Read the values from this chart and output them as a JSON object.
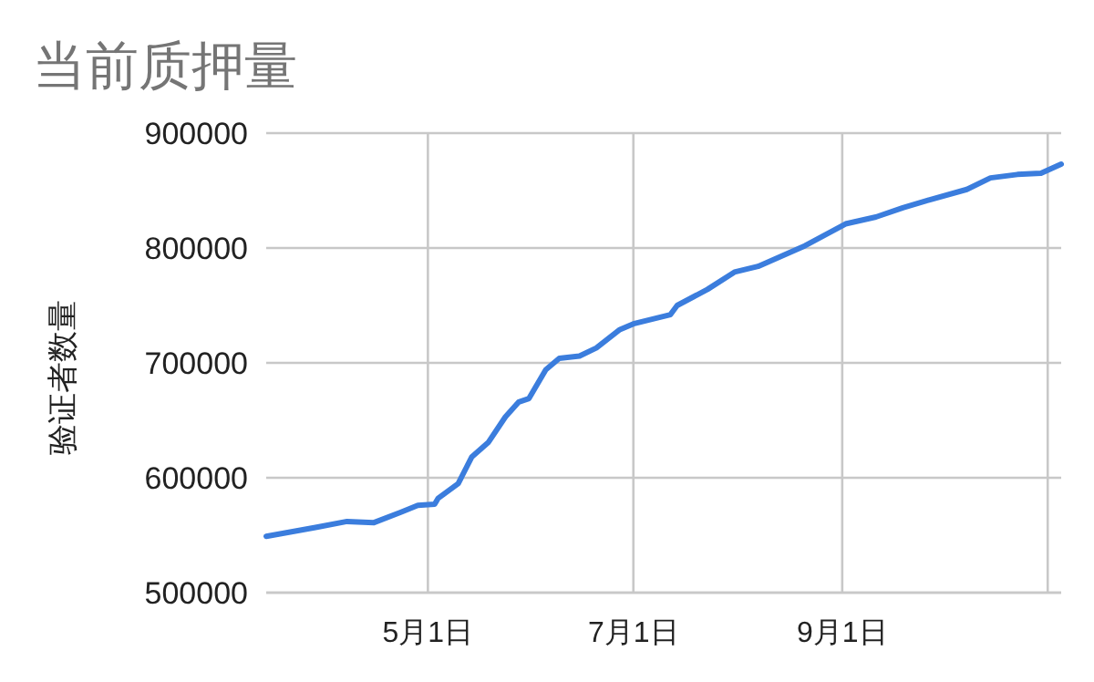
{
  "chart_data": {
    "type": "line",
    "title": "当前质押量",
    "ylabel": "验证者数量",
    "x": [
      "--03-14",
      "--03-29",
      "--04-07",
      "--04-15",
      "--04-23",
      "--04-28",
      "--05-03",
      "--05-04",
      "--05-10",
      "--05-14",
      "--05-19",
      "--05-24",
      "--05-28",
      "--05-31",
      "--06-05",
      "--06-09",
      "--06-15",
      "--06-20",
      "--06-27",
      "--07-01",
      "--07-12",
      "--07-14",
      "--07-23",
      "--07-31",
      "--08-07",
      "--08-21",
      "--09-02",
      "--09-11",
      "--09-19",
      "--09-27",
      "--10-08",
      "--10-15",
      "--10-23",
      "--10-30",
      "--11-05"
    ],
    "series": [
      {
        "color": "#3b7ddd",
        "values": [
          549000,
          557000,
          562000,
          561000,
          570000,
          576000,
          577000,
          582000,
          595000,
          618000,
          631000,
          653000,
          666000,
          669000,
          694000,
          704000,
          706000,
          713000,
          729000,
          734000,
          742000,
          750000,
          764000,
          779000,
          784000,
          802000,
          821000,
          827000,
          835000,
          842000,
          851000,
          861000,
          864000,
          865000,
          873000
        ]
      }
    ],
    "xlim": [
      "--03-14",
      "--11-05"
    ],
    "xticks": [
      {
        "value": "--05-01",
        "label": "5月1日"
      },
      {
        "value": "--07-01",
        "label": "7月1日"
      },
      {
        "value": "--09-01",
        "label": "9月1日"
      },
      {
        "value": "--11-01",
        "label": null
      }
    ],
    "ylim": [
      500000,
      900000
    ],
    "yticks": [
      500000,
      600000,
      700000,
      800000,
      900000
    ],
    "grid": true
  }
}
